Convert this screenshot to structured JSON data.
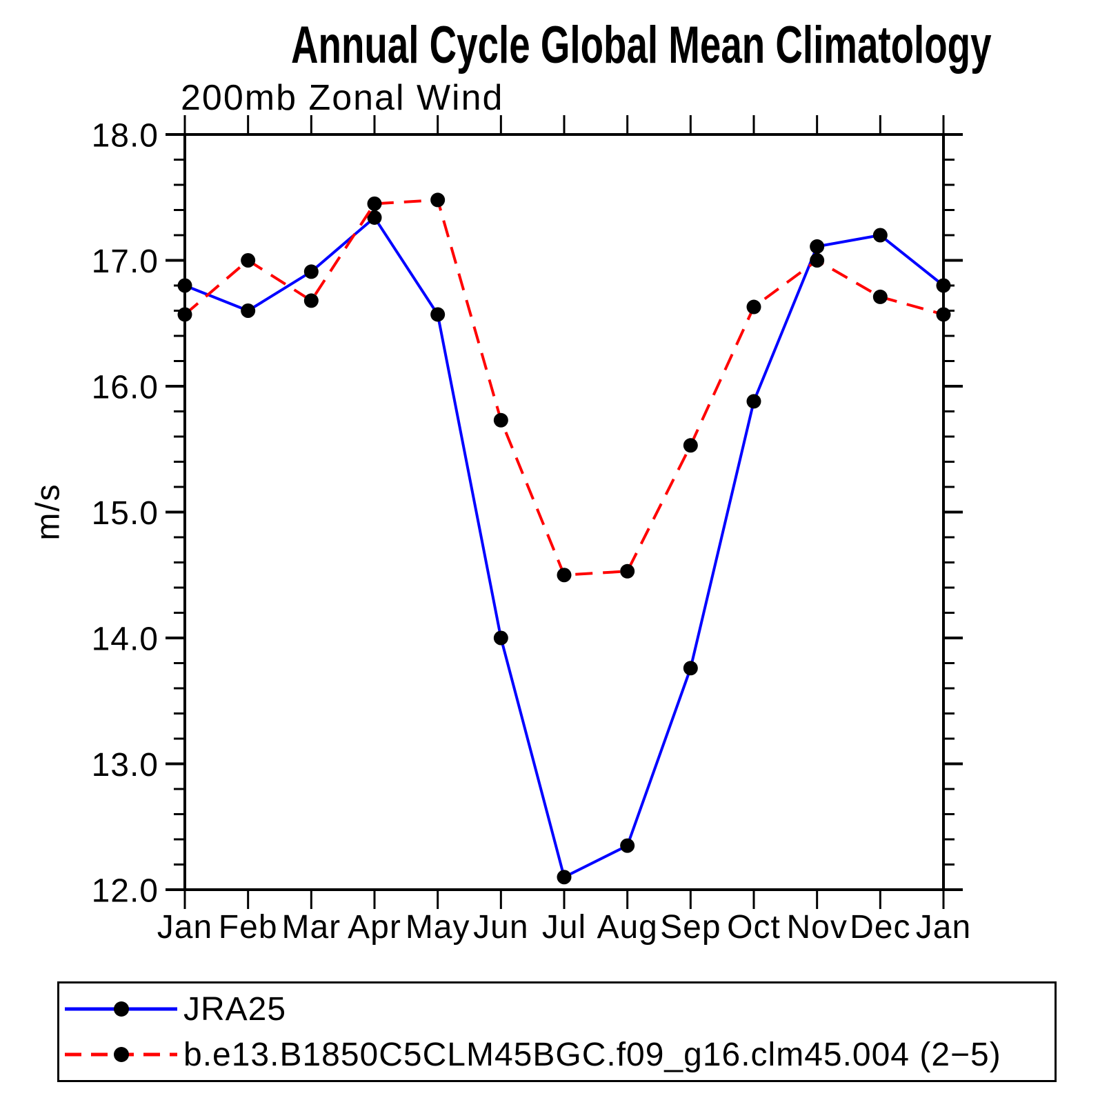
{
  "chart_data": {
    "type": "line",
    "title": "Annual Cycle Global Mean Climatology",
    "subtitle": "200mb Zonal Wind",
    "ylabel": "m/s",
    "categories": [
      "Jan",
      "Feb",
      "Mar",
      "Apr",
      "May",
      "Jun",
      "Jul",
      "Aug",
      "Sep",
      "Oct",
      "Nov",
      "Dec",
      "Jan"
    ],
    "ylim": [
      12.0,
      18.0
    ],
    "y_major_ticks": [
      12,
      13,
      14,
      15,
      16,
      17,
      18
    ],
    "y_tick_labels": [
      "12.0",
      "13.0",
      "14.0",
      "15.0",
      "16.0",
      "17.0",
      "18.0"
    ],
    "y_minor_step": 0.2,
    "grid": false,
    "legend_position": "bottom",
    "axis_color": "#000000",
    "marker": "circle",
    "series": [
      {
        "name": "JRA25",
        "color": "#0000ff",
        "line_style": "solid",
        "marker_color": "#000000",
        "values": [
          16.8,
          16.6,
          16.91,
          17.34,
          16.57,
          14.0,
          12.1,
          12.35,
          13.76,
          15.88,
          17.11,
          17.2,
          16.8
        ]
      },
      {
        "name": "b.e13.B1850C5CLM45BGC.f09_g16.clm45.004 (2−5)",
        "color": "#ff0000",
        "line_style": "dashed",
        "marker_color": "#000000",
        "values": [
          16.57,
          17.0,
          16.68,
          17.45,
          17.48,
          15.73,
          14.5,
          14.53,
          15.53,
          16.63,
          17.0,
          16.71,
          16.57
        ]
      }
    ]
  }
}
